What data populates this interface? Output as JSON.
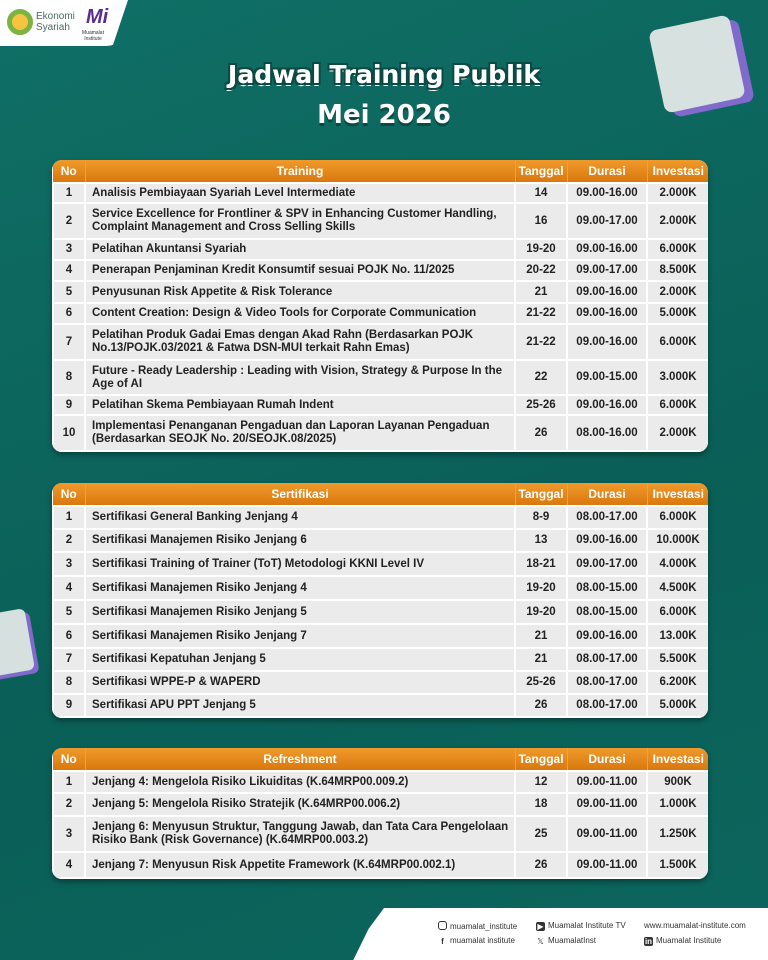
{
  "logos": {
    "ekonomi": "Ekonomi\nSyariah",
    "muamalat": "Muamalat\nInstitute",
    "mi": "Mi"
  },
  "title": "Jadwal Training Publik",
  "subtitle": "Mei 2026",
  "headers": {
    "no": "No",
    "tanggal": "Tanggal",
    "durasi": "Durasi",
    "investasi": "Investasi"
  },
  "tables": [
    {
      "title": "Training",
      "rows": [
        [
          "1",
          "Analisis Pembiayaan Syariah Level Intermediate",
          "14",
          "09.00-16.00",
          "2.000K"
        ],
        [
          "2",
          "Service Excellence for Frontliner & SPV in Enhancing Customer Handling, Complaint Management and Cross Selling Skills",
          "16",
          "09.00-17.00",
          "2.000K"
        ],
        [
          "3",
          "Pelatihan Akuntansi Syariah",
          "19-20",
          "09.00-16.00",
          "6.000K"
        ],
        [
          "4",
          "Penerapan Penjaminan Kredit Konsumtif sesuai POJK No. 11/2025",
          "20-22",
          "09.00-17.00",
          "8.500K"
        ],
        [
          "5",
          "Penyusunan Risk Appetite & Risk Tolerance",
          "21",
          "09.00-16.00",
          "2.000K"
        ],
        [
          "6",
          "Content Creation: Design & Video Tools for Corporate Communication",
          "21-22",
          "09.00-16.00",
          "5.000K"
        ],
        [
          "7",
          "Pelatihan Produk Gadai Emas dengan Akad Rahn (Berdasarkan POJK No.13/POJK.03/2021 & Fatwa DSN-MUI terkait Rahn Emas)",
          "21-22",
          "09.00-16.00",
          "6.000K"
        ],
        [
          "8",
          "Future - Ready Leadership : Leading with Vision, Strategy & Purpose In the Age of AI",
          "22",
          "09.00-15.00",
          "3.000K"
        ],
        [
          "9",
          "Pelatihan Skema Pembiayaan Rumah Indent",
          "25-26",
          "09.00-16.00",
          "6.000K"
        ],
        [
          "10",
          "Implementasi Penanganan Pengaduan dan Laporan Layanan Pengaduan (Berdasarkan SEOJK No. 20/SEOJK.08/2025)",
          "26",
          "08.00-16.00",
          "2.000K"
        ]
      ]
    },
    {
      "title": "Sertifikasi",
      "rows": [
        [
          "1",
          "Sertifikasi General Banking Jenjang 4",
          "8-9",
          "08.00-17.00",
          "6.000K"
        ],
        [
          "2",
          "Sertifikasi Manajemen Risiko Jenjang 6",
          "13",
          "09.00-16.00",
          "10.000K"
        ],
        [
          "3",
          "Sertifikasi Training of Trainer (ToT) Metodologi KKNI Level IV",
          "18-21",
          "09.00-17.00",
          "4.000K"
        ],
        [
          "4",
          "Sertifikasi Manajemen Risiko Jenjang 4",
          "19-20",
          "08.00-15.00",
          "4.500K"
        ],
        [
          "5",
          "Sertifikasi Manajemen Risiko Jenjang 5",
          "19-20",
          "08.00-15.00",
          "6.000K"
        ],
        [
          "6",
          "Sertifikasi Manajemen Risiko Jenjang 7",
          "21",
          "09.00-16.00",
          "13.00K"
        ],
        [
          "7",
          "Sertifikasi Kepatuhan Jenjang 5",
          "21",
          "08.00-17.00",
          "5.500K"
        ],
        [
          "8",
          "Sertifikasi WPPE-P & WAPERD",
          "25-26",
          "08.00-17.00",
          "6.200K"
        ],
        [
          "9",
          "Sertifikasi APU PPT Jenjang 5",
          "26",
          "08.00-17.00",
          "5.000K"
        ]
      ]
    },
    {
      "title": "Refreshment",
      "rows": [
        [
          "1",
          "Jenjang 4: Mengelola Risiko Likuiditas (K.64MRP00.009.2)",
          "12",
          "09.00-11.00",
          "900K"
        ],
        [
          "2",
          "Jenjang 5: Mengelola Risiko Stratejik (K.64MRP00.006.2)",
          "18",
          "09.00-11.00",
          "1.000K"
        ],
        [
          "3",
          "Jenjang 6: Menyusun Struktur, Tanggung Jawab, dan Tata Cara Pengelolaan Risiko Bank (Risk Governance) (K.64MRP00.003.2)",
          "25",
          "09.00-11.00",
          "1.250K"
        ],
        [
          "4",
          "Jenjang 7: Menyusun Risk Appetite Framework (K.64MRP00.002.1)",
          "26",
          "09.00-11.00",
          "1.500K"
        ]
      ]
    }
  ],
  "footer": {
    "instagram": "muamalat_institute",
    "youtube": "Muamalat Institute TV",
    "website": "www.muamalat-institute.com",
    "facebook": "muamalat institute",
    "x": "MuamalatInst",
    "linkedin": "Muamalat Institute"
  }
}
